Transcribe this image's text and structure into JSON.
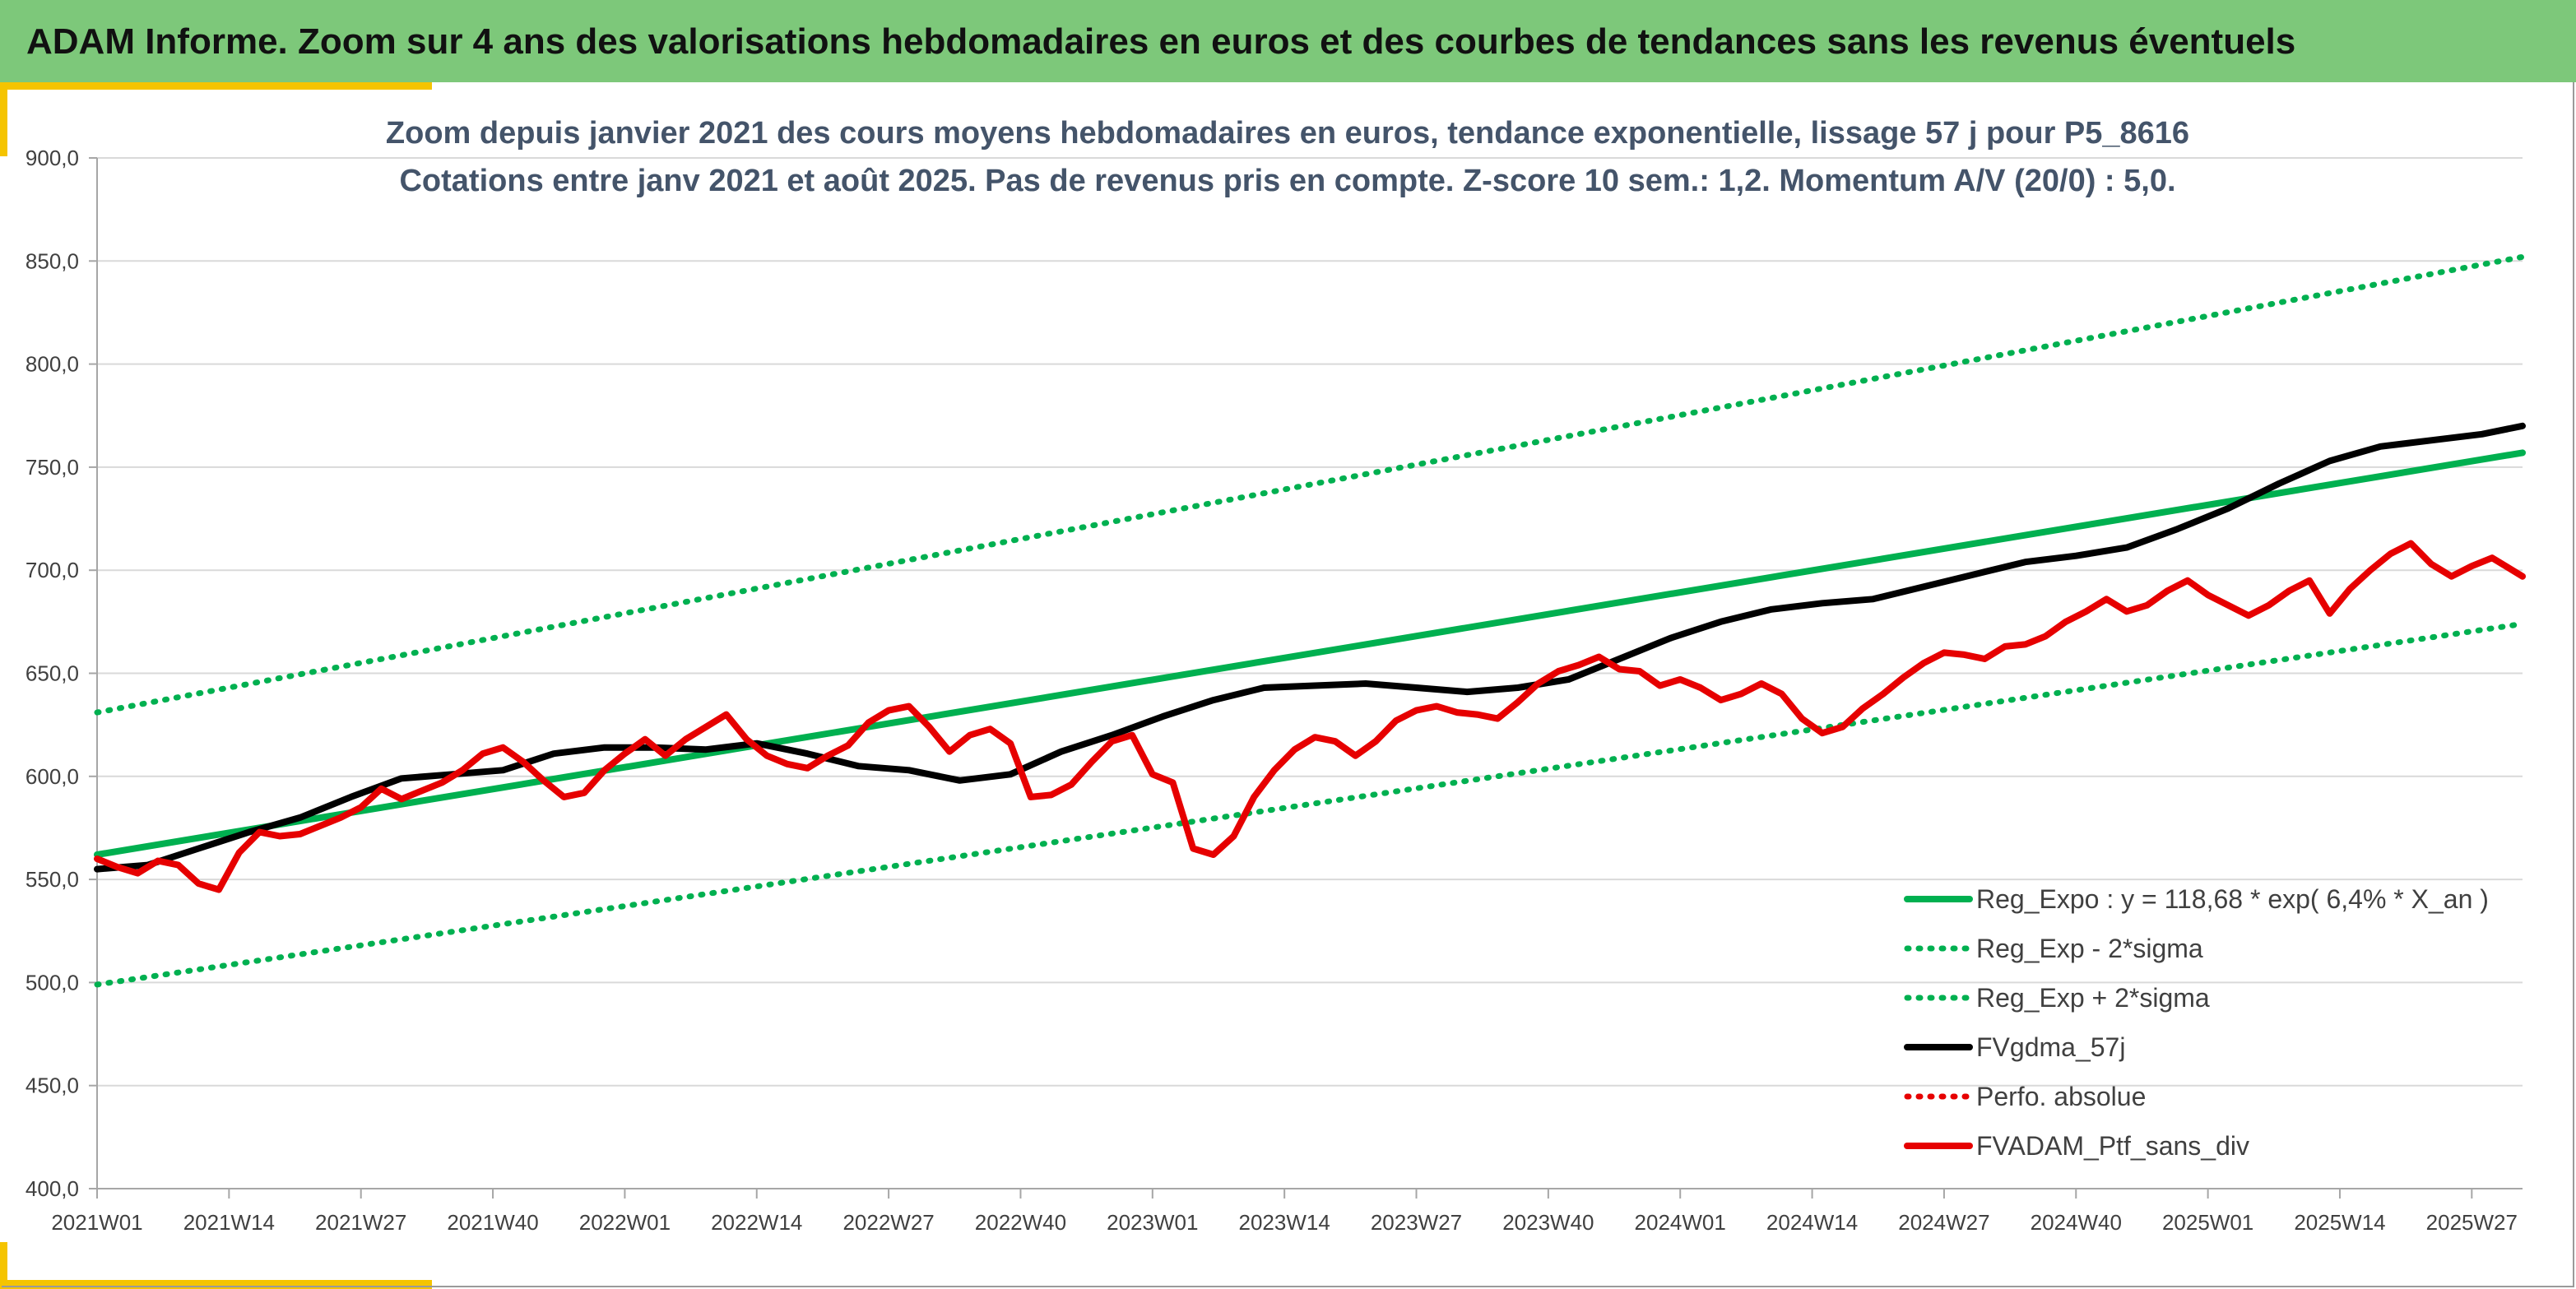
{
  "header": {
    "title": "ADAM Informe. Zoom sur 4 ans des valorisations hebdomadaires en euros et des courbes de tendances sans les revenus éventuels",
    "background": "#7dc87a",
    "accent": "#f5c400"
  },
  "chart_data": {
    "type": "line",
    "title_lines": [
      "Zoom depuis janvier 2021 des cours moyens hebdomadaires en euros, tendance exponentielle, lissage 57 j pour P5_8616",
      "Cotations entre janv 2021 et août 2025. Pas de revenus pris en compte. Z-score 10 sem.: 1,2. Momentum A/V (20/0) : 5,0."
    ],
    "ylim": [
      400,
      900
    ],
    "y_ticks": [
      "400,0",
      "450,0",
      "500,0",
      "550,0",
      "600,0",
      "650,0",
      "700,0",
      "750,0",
      "800,0",
      "850,0",
      "900,0"
    ],
    "x_ticks": [
      "2021W01",
      "2021W14",
      "2021W27",
      "2021W40",
      "2022W01",
      "2022W14",
      "2022W27",
      "2022W40",
      "2023W01",
      "2023W14",
      "2023W27",
      "2023W40",
      "2024W01",
      "2024W14",
      "2024W27",
      "2024W40",
      "2025W01",
      "2025W14",
      "2025W27"
    ],
    "weeks_total": 240,
    "grid": true,
    "legend_position": "bottom-right",
    "series": [
      {
        "name": "Reg_Expo : y = 118,68 * exp( 6,4% *  X_an )",
        "color": "#00b050",
        "style": "solid-thick",
        "x": [
          0,
          239
        ],
        "y": [
          562,
          757
        ]
      },
      {
        "name": "Reg_Exp - 2*sigma",
        "color": "#00b050",
        "style": "dotted",
        "x": [
          0,
          239
        ],
        "y": [
          499,
          674
        ]
      },
      {
        "name": "Reg_Exp + 2*sigma",
        "color": "#00b050",
        "style": "dotted",
        "x": [
          0,
          239
        ],
        "y": [
          631,
          852
        ]
      },
      {
        "name": "FVgdma_57j",
        "color": "#000000",
        "style": "solid-thick",
        "x": [
          0,
          5,
          10,
          15,
          20,
          25,
          30,
          35,
          40,
          45,
          50,
          55,
          60,
          65,
          70,
          75,
          80,
          85,
          90,
          95,
          100,
          105,
          110,
          115,
          120,
          125,
          130,
          135,
          140,
          145,
          150,
          155,
          160,
          165,
          170,
          175,
          180,
          185,
          190,
          195,
          200,
          205,
          210,
          215,
          220,
          225,
          230,
          235,
          239
        ],
        "y": [
          555,
          557,
          565,
          573,
          580,
          590,
          599,
          601,
          603,
          611,
          614,
          614,
          613,
          616,
          611,
          605,
          603,
          598,
          601,
          612,
          620,
          629,
          637,
          643,
          644,
          645,
          643,
          641,
          643,
          647,
          657,
          667,
          675,
          681,
          684,
          686,
          692,
          698,
          704,
          707,
          711,
          720,
          730,
          742,
          753,
          760,
          763,
          766,
          770
        ]
      },
      {
        "name": "Perfo. absolue",
        "color": "#e60000",
        "style": "dotted",
        "x": [],
        "y": []
      },
      {
        "name": "FVADAM_Ptf_sans_div",
        "color": "#e60000",
        "style": "solid-thick",
        "x": [
          0,
          2,
          4,
          6,
          8,
          10,
          12,
          14,
          16,
          18,
          20,
          22,
          24,
          26,
          28,
          30,
          32,
          34,
          36,
          38,
          40,
          42,
          44,
          46,
          48,
          50,
          52,
          54,
          56,
          58,
          60,
          62,
          64,
          66,
          68,
          70,
          72,
          74,
          76,
          78,
          80,
          82,
          84,
          86,
          88,
          90,
          92,
          94,
          96,
          98,
          100,
          102,
          104,
          106,
          108,
          110,
          112,
          114,
          116,
          118,
          120,
          122,
          124,
          126,
          128,
          130,
          132,
          134,
          136,
          138,
          140,
          142,
          144,
          146,
          148,
          150,
          152,
          154,
          156,
          158,
          160,
          162,
          164,
          166,
          168,
          170,
          172,
          174,
          176,
          178,
          180,
          182,
          184,
          186,
          188,
          190,
          192,
          194,
          196,
          198,
          200,
          202,
          204,
          206,
          208,
          210,
          212,
          214,
          216,
          218,
          220,
          222,
          224,
          226,
          228,
          230,
          232,
          234,
          236,
          238,
          239
        ],
        "y": [
          560,
          556,
          553,
          559,
          557,
          548,
          545,
          563,
          573,
          571,
          572,
          576,
          580,
          585,
          594,
          589,
          593,
          597,
          603,
          611,
          614,
          607,
          598,
          590,
          592,
          603,
          611,
          618,
          610,
          618,
          624,
          630,
          618,
          610,
          606,
          604,
          610,
          615,
          626,
          632,
          634,
          624,
          612,
          620,
          623,
          616,
          590,
          591,
          596,
          607,
          617,
          620,
          601,
          597,
          565,
          562,
          571,
          590,
          603,
          613,
          619,
          617,
          610,
          617,
          627,
          632,
          634,
          631,
          630,
          628,
          636,
          645,
          651,
          654,
          658,
          652,
          651,
          644,
          647,
          643,
          637,
          640,
          645,
          640,
          628,
          621,
          624,
          633,
          640,
          648,
          655,
          660,
          659,
          657,
          663,
          664,
          668,
          675,
          680,
          686,
          680,
          683,
          690,
          695,
          688,
          683,
          678,
          683,
          690,
          695,
          679,
          691,
          700,
          708,
          713,
          703,
          697,
          702,
          706,
          700,
          697
        ]
      }
    ]
  }
}
